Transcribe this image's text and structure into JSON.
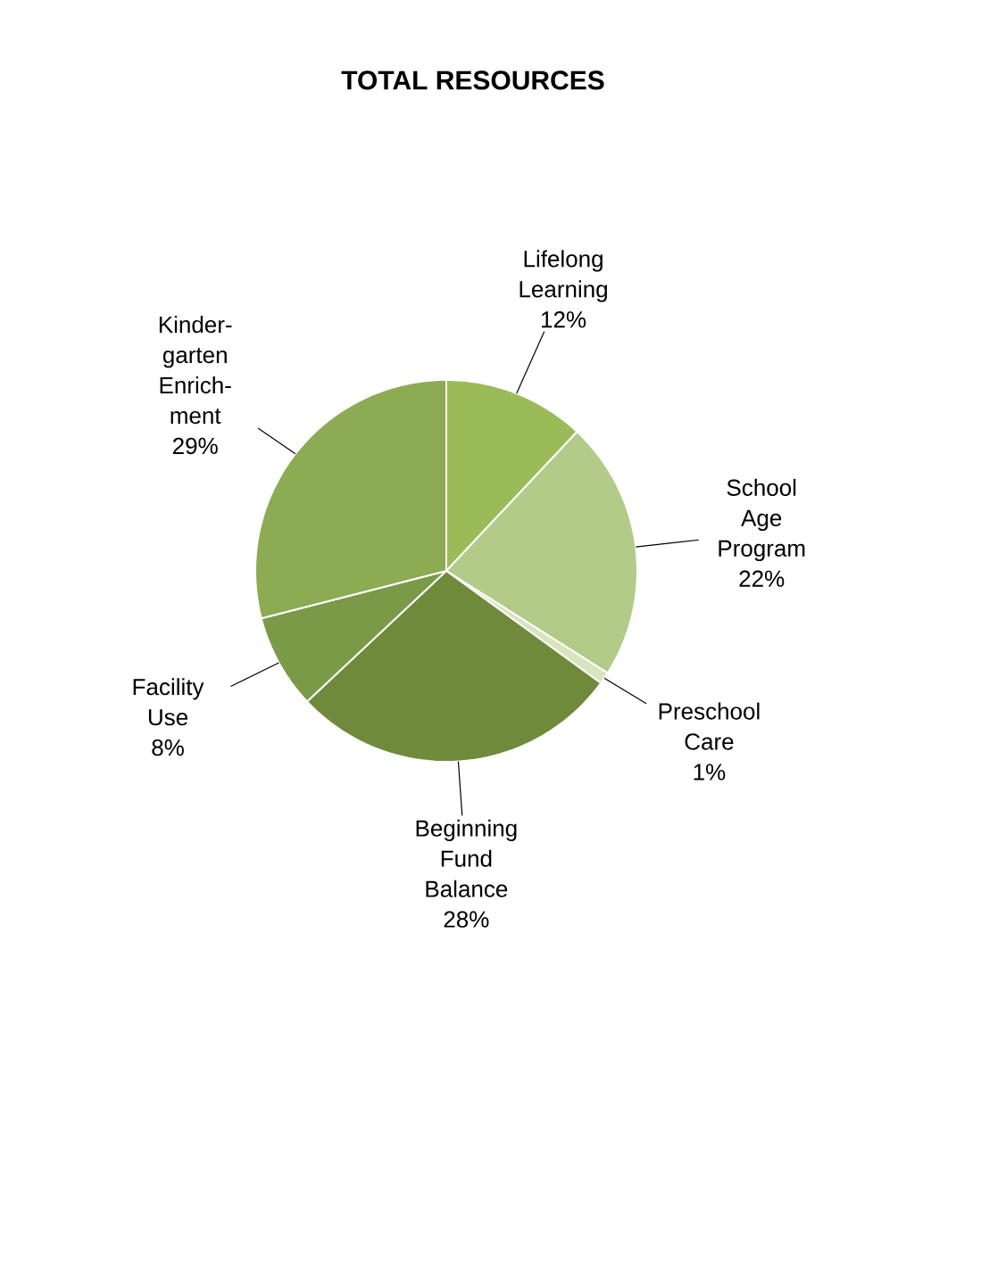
{
  "chart_data": {
    "type": "pie",
    "title": "TOTAL RESOURCES",
    "categories": [
      "Lifelong Learning",
      "School Age Program",
      "Preschool Care",
      "Beginning Fund Balance",
      "Facility Use",
      "Kinder-garten Enrich-ment"
    ],
    "values": [
      12,
      22,
      1,
      28,
      8,
      29
    ],
    "value_labels": [
      "12%",
      "22%",
      "1%",
      "28%",
      "8%",
      "29%"
    ],
    "colors": [
      "#9bbb59",
      "#b3cb89",
      "#d7e4bd",
      "#6f8a3a",
      "#7a9a48",
      "#8cab52"
    ]
  }
}
